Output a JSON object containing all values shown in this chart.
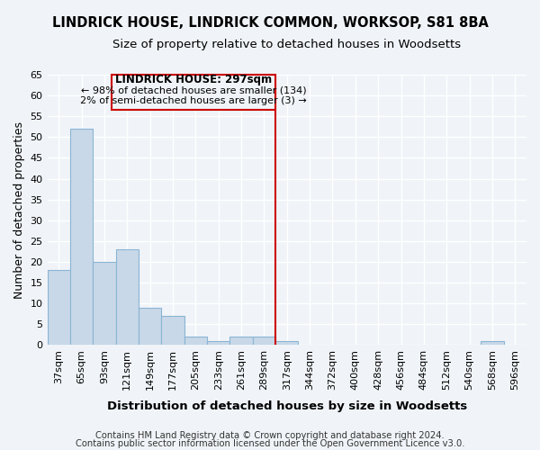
{
  "title1": "LINDRICK HOUSE, LINDRICK COMMON, WORKSOP, S81 8BA",
  "title2": "Size of property relative to detached houses in Woodsetts",
  "xlabel": "Distribution of detached houses by size in Woodsetts",
  "ylabel": "Number of detached properties",
  "categories": [
    "37sqm",
    "65sqm",
    "93sqm",
    "121sqm",
    "149sqm",
    "177sqm",
    "205sqm",
    "233sqm",
    "261sqm",
    "289sqm",
    "317sqm",
    "344sqm",
    "372sqm",
    "400sqm",
    "428sqm",
    "456sqm",
    "484sqm",
    "512sqm",
    "540sqm",
    "568sqm",
    "596sqm"
  ],
  "values": [
    18,
    52,
    20,
    23,
    9,
    7,
    2,
    1,
    2,
    2,
    1,
    0,
    0,
    0,
    0,
    0,
    0,
    0,
    0,
    1,
    0
  ],
  "bar_color": "#c8d8e8",
  "bar_edge_color": "#8ab4d4",
  "vline_color": "#cc0000",
  "box_color": "#cc0000",
  "ylim": [
    0,
    65
  ],
  "yticks": [
    0,
    5,
    10,
    15,
    20,
    25,
    30,
    35,
    40,
    45,
    50,
    55,
    60,
    65
  ],
  "footer1": "Contains HM Land Registry data © Crown copyright and database right 2024.",
  "footer2": "Contains public sector information licensed under the Open Government Licence v3.0.",
  "bg_color": "#f0f4f8",
  "grid_color": "#ffffff",
  "subject_label": "LINDRICK HOUSE: 297sqm",
  "annot_line1": "← 98% of detached houses are smaller (134)",
  "annot_line2": "2% of semi-detached houses are larger (3) →"
}
